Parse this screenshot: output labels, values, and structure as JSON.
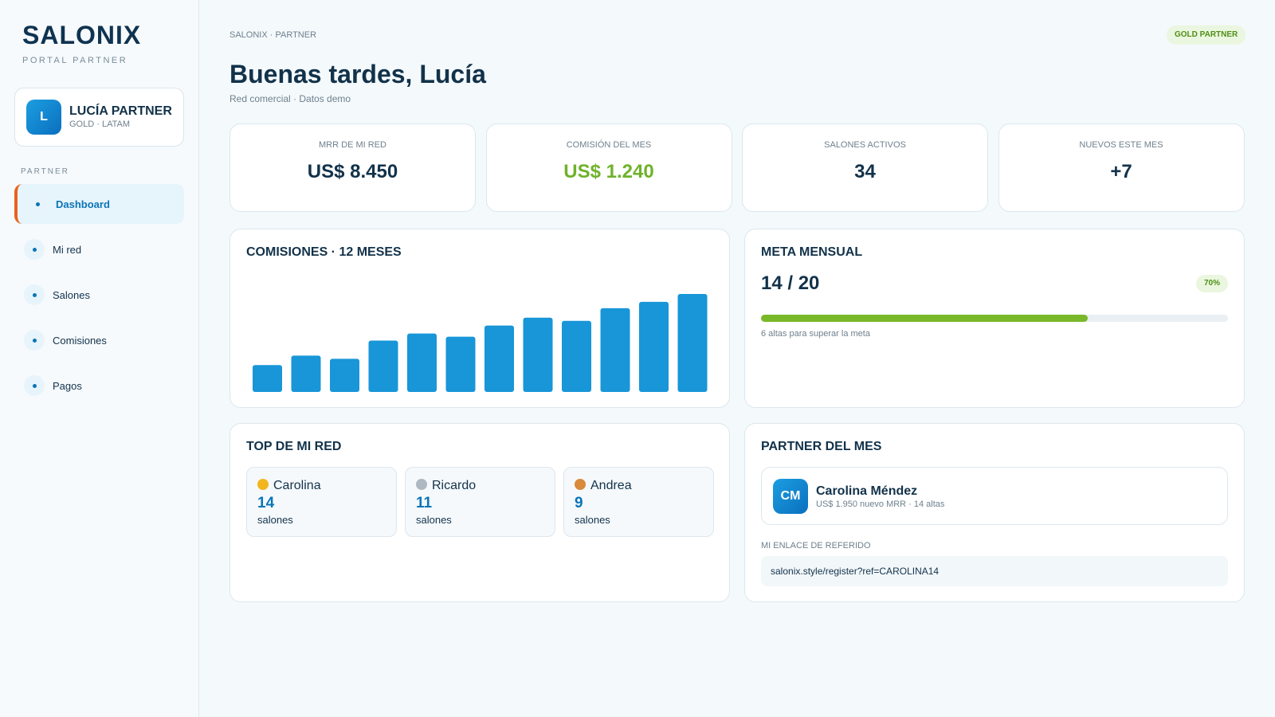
{
  "sidebar": {
    "brand": "SALONIX",
    "brand_subtitle": "PORTAL PARTNER",
    "profile": {
      "initial": "L",
      "name": "LUCÍA PARTNER",
      "tier": "GOLD · LATAM"
    },
    "nav_section": "PARTNER",
    "nav": [
      "Dashboard",
      "Mi red",
      "Salones",
      "Comisiones",
      "Pagos"
    ]
  },
  "header": {
    "breadcrumb": "SALONIX · PARTNER",
    "badge": "GOLD PARTNER",
    "greeting": "Buenas tardes, Lucía",
    "subtitle": "Red comercial · Datos demo"
  },
  "kpis": [
    {
      "label": "MRR DE MI RED",
      "value": "US$ 8.450"
    },
    {
      "label": "COMISIÓN DEL MES",
      "value": "US$ 1.240"
    },
    {
      "label": "SALONES ACTIVOS",
      "value": "34"
    },
    {
      "label": "NUEVOS ESTE MES",
      "value": "+7"
    }
  ],
  "chart_data": {
    "type": "bar",
    "title": "COMISIONES · 12 MESES",
    "values": [
      340,
      460,
      420,
      650,
      740,
      700,
      840,
      940,
      900,
      1060,
      1140,
      1240
    ],
    "color": "#1896d8"
  },
  "goal": {
    "title": "META MENSUAL",
    "progress_text": "14 / 20",
    "percent": {
      "value": 70,
      "label": "70%"
    },
    "note": "6 altas para superar la meta"
  },
  "top": {
    "title": "TOP DE MI RED",
    "items": [
      {
        "name": "Carolina",
        "count": 14,
        "unit": "salones"
      },
      {
        "name": "Ricardo",
        "count": 11,
        "unit": "salones"
      },
      {
        "name": "Andrea",
        "count": 9,
        "unit": "salones"
      }
    ]
  },
  "partner_of_month": {
    "title": "PARTNER DEL MES",
    "initials": "CM",
    "name": "Carolina Méndez",
    "detail": "US$ 1.950 nuevo MRR · 14 altas",
    "referral_label": "MI ENLACE DE REFERIDO",
    "referral_link": "salonix.style/register?ref=CAROLINA14"
  }
}
